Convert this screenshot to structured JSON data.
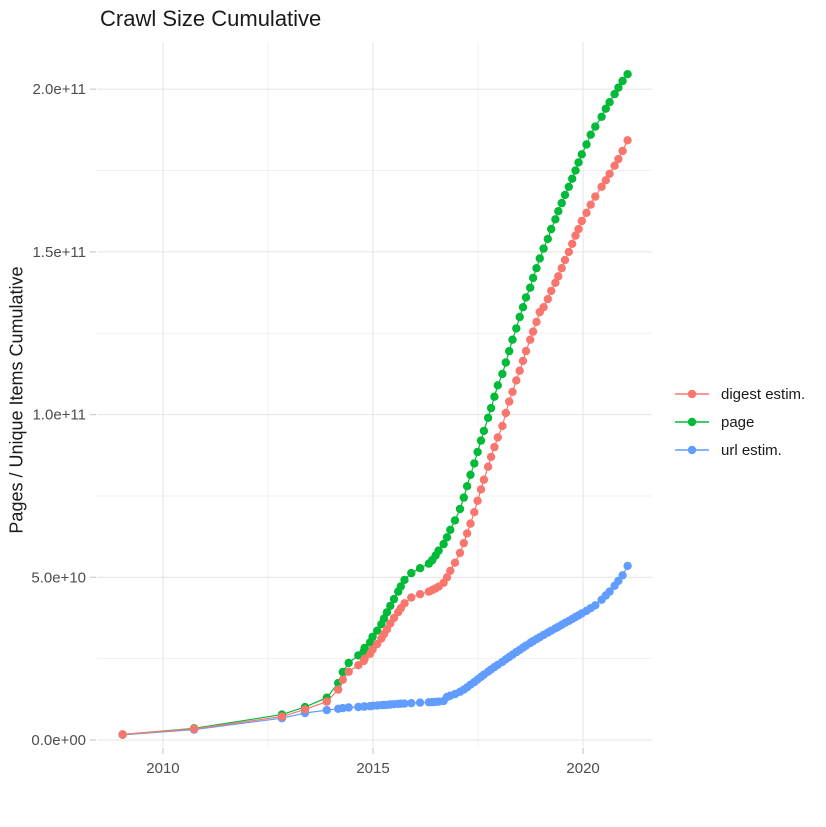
{
  "title": "Crawl Size Cumulative",
  "chart_data": {
    "type": "scatter",
    "title": "Crawl Size Cumulative",
    "xlabel": "",
    "ylabel": "Pages / Unique Items Cumulative",
    "legend_position": "right",
    "grid": true,
    "unit": 1000000000,
    "x_axis": {
      "range": [
        2008.43,
        2021.64
      ],
      "ticks": [
        2010,
        2015,
        2020
      ],
      "tick_labels": [
        "2010",
        "2015",
        "2020"
      ],
      "minor_ticks": [
        2012.5,
        2017.5
      ]
    },
    "y_axis": {
      "range": [
        -2150000000,
        214500000000
      ],
      "ticks": [
        0,
        50000000000,
        100000000000,
        150000000000,
        200000000000
      ],
      "tick_labels": [
        "0.0e+00",
        "5.0e+10",
        "1.0e+11",
        "1.5e+11",
        "2.0e+11"
      ],
      "minor_ticks": [
        25000000000,
        75000000000,
        125000000000,
        175000000000
      ]
    },
    "x": [
      2009.04,
      2010.74,
      2012.83,
      2013.38,
      2013.9,
      2014.17,
      2014.28,
      2014.42,
      2014.65,
      2014.78,
      2014.8,
      2014.93,
      2014.99,
      2015.1,
      2015.2,
      2015.26,
      2015.33,
      2015.41,
      2015.5,
      2015.6,
      2015.66,
      2015.75,
      2015.91,
      2016.12,
      2016.33,
      2016.41,
      2016.49,
      2016.56,
      2016.68,
      2016.76,
      2016.84,
      2016.95,
      2017.07,
      2017.16,
      2017.24,
      2017.32,
      2017.41,
      2017.49,
      2017.57,
      2017.64,
      2017.74,
      2017.81,
      2017.89,
      2017.97,
      2018.08,
      2018.16,
      2018.24,
      2018.32,
      2018.41,
      2018.49,
      2018.57,
      2018.64,
      2018.74,
      2018.81,
      2018.89,
      2018.97,
      2019.06,
      2019.16,
      2019.24,
      2019.34,
      2019.41,
      2019.49,
      2019.57,
      2019.66,
      2019.74,
      2019.82,
      2019.89,
      2019.97,
      2020.08,
      2020.18,
      2020.29,
      2020.44,
      2020.54,
      2020.63,
      2020.75,
      2020.84,
      2020.94,
      2021.06
    ],
    "series": [
      {
        "name": "digest estim.",
        "color": "#F8766D",
        "values_billions": [
          1.7,
          3.4,
          7.2,
          9.4,
          11.8,
          15.5,
          18.5,
          21.0,
          23.0,
          24.3,
          25.0,
          26.5,
          27.8,
          29.5,
          31.2,
          32.5,
          34.0,
          35.8,
          37.5,
          39.3,
          40.5,
          42.0,
          43.8,
          44.8,
          45.6,
          46.1,
          46.6,
          47.1,
          48.3,
          50.0,
          52.0,
          54.5,
          57.5,
          60.5,
          63.5,
          66.5,
          70.0,
          73.5,
          77.0,
          80.0,
          84.0,
          87.0,
          90.0,
          93.0,
          96.5,
          100.5,
          104.0,
          107.0,
          110.5,
          113.5,
          116.5,
          119.5,
          123.0,
          125.5,
          128.5,
          131.5,
          133.0,
          135.5,
          138.0,
          140.5,
          142.5,
          145.0,
          147.5,
          150.0,
          152.5,
          155.0,
          157.0,
          159.5,
          162.0,
          164.5,
          167.0,
          170.0,
          172.0,
          174.0,
          176.5,
          178.5,
          181.0,
          184.3
        ]
      },
      {
        "name": "page",
        "color": "#00BA38",
        "values_billions": [
          1.7,
          3.6,
          7.8,
          10.1,
          13.0,
          17.5,
          20.9,
          23.7,
          26.0,
          27.3,
          28.3,
          30.0,
          31.7,
          33.6,
          35.6,
          37.3,
          39.2,
          41.2,
          43.3,
          45.6,
          47.2,
          49.2,
          51.3,
          52.8,
          54.2,
          55.3,
          56.7,
          58.2,
          60.2,
          62.3,
          64.6,
          67.5,
          71.0,
          74.5,
          78.0,
          81.5,
          85.0,
          88.5,
          92.0,
          95.0,
          99.0,
          102.0,
          105.5,
          109.0,
          112.5,
          116.0,
          119.5,
          123.0,
          126.5,
          130.0,
          133.0,
          136.0,
          139.0,
          142.0,
          145.0,
          148.0,
          151.0,
          154.0,
          157.0,
          160.0,
          162.5,
          165.0,
          167.5,
          170.0,
          172.5,
          175.0,
          177.5,
          180.0,
          183.0,
          186.0,
          188.5,
          191.5,
          194.0,
          196.0,
          198.5,
          200.5,
          202.5,
          204.6
        ]
      },
      {
        "name": "url estim.",
        "color": "#619CFF",
        "values_billions": [
          1.6,
          3.2,
          6.7,
          8.3,
          9.2,
          9.6,
          9.8,
          10.0,
          10.15,
          10.25,
          10.3,
          10.4,
          10.5,
          10.6,
          10.7,
          10.75,
          10.8,
          10.9,
          11.0,
          11.1,
          11.15,
          11.2,
          11.3,
          11.5,
          11.6,
          11.65,
          11.7,
          11.8,
          12.0,
          13.2,
          13.6,
          14.1,
          14.8,
          15.5,
          16.2,
          17.0,
          17.8,
          18.6,
          19.4,
          20.1,
          21.0,
          21.7,
          22.4,
          23.1,
          24.0,
          24.8,
          25.5,
          26.2,
          27.0,
          27.7,
          28.4,
          29.0,
          29.8,
          30.4,
          31.0,
          31.6,
          32.3,
          33.0,
          33.6,
          34.3,
          34.8,
          35.4,
          36.0,
          36.6,
          37.2,
          37.8,
          38.3,
          38.9,
          39.7,
          40.5,
          41.4,
          43.1,
          44.4,
          45.6,
          47.4,
          48.9,
          50.6,
          53.5
        ]
      }
    ],
    "draw_order": [
      2,
      1,
      0
    ],
    "style": {
      "major_grid_color": "#e4e4e4",
      "minor_grid_color": "#f1f1f1",
      "tick_color": "#cfcfcf",
      "tick_label_color": "#4d4d4d",
      "point_radius": 4.2,
      "line_width": 1.2
    }
  }
}
